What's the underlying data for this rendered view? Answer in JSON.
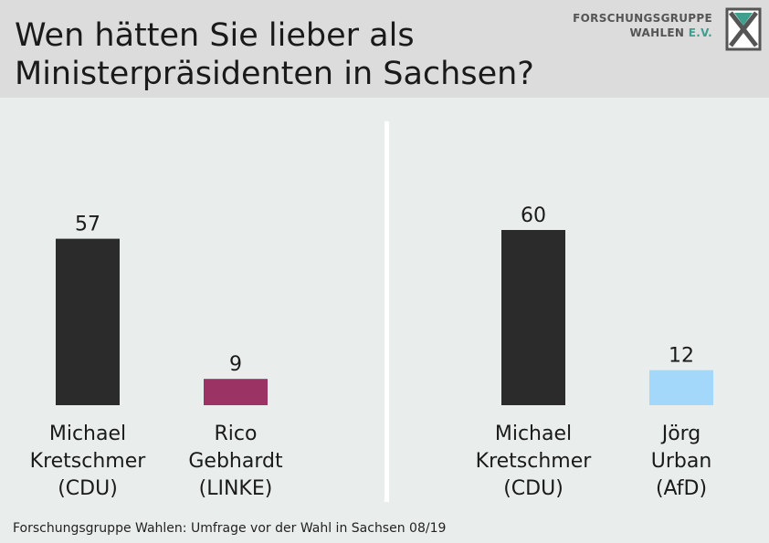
{
  "header": {
    "title_line1": "Wen hätten Sie lieber als",
    "title_line2": "Ministerpräsidenten in Sachsen?",
    "logo_line1": "FORSCHUNGSGRUPPE",
    "logo_line2": "WAHLEN",
    "logo_ev": "E.V."
  },
  "footer": {
    "source": "Forschungsgruppe Wahlen: Umfrage vor der Wahl in Sachsen 08/19"
  },
  "colors": {
    "cdu": "#2b2b2b",
    "linke": "#9b3465",
    "afd": "#a3d8fa",
    "background": "#e9eeec",
    "header": "#dcdcdc"
  },
  "chart_data": [
    {
      "type": "bar",
      "categories": [
        {
          "line1": "Michael",
          "line2": "Kretschmer",
          "line3": "(CDU)"
        },
        {
          "line1": "Rico",
          "line2": "Gebhardt",
          "line3": "(LINKE)"
        }
      ],
      "values": [
        57,
        9
      ],
      "colors": [
        "#2b2b2b",
        "#9b3465"
      ],
      "ylim": [
        0,
        100
      ]
    },
    {
      "type": "bar",
      "categories": [
        {
          "line1": "Michael",
          "line2": "Kretschmer",
          "line3": "(CDU)"
        },
        {
          "line1": "Jörg",
          "line2": "Urban",
          "line3": "(AfD)"
        }
      ],
      "values": [
        60,
        12
      ],
      "colors": [
        "#2b2b2b",
        "#a3d8fa"
      ],
      "ylim": [
        0,
        100
      ]
    }
  ]
}
